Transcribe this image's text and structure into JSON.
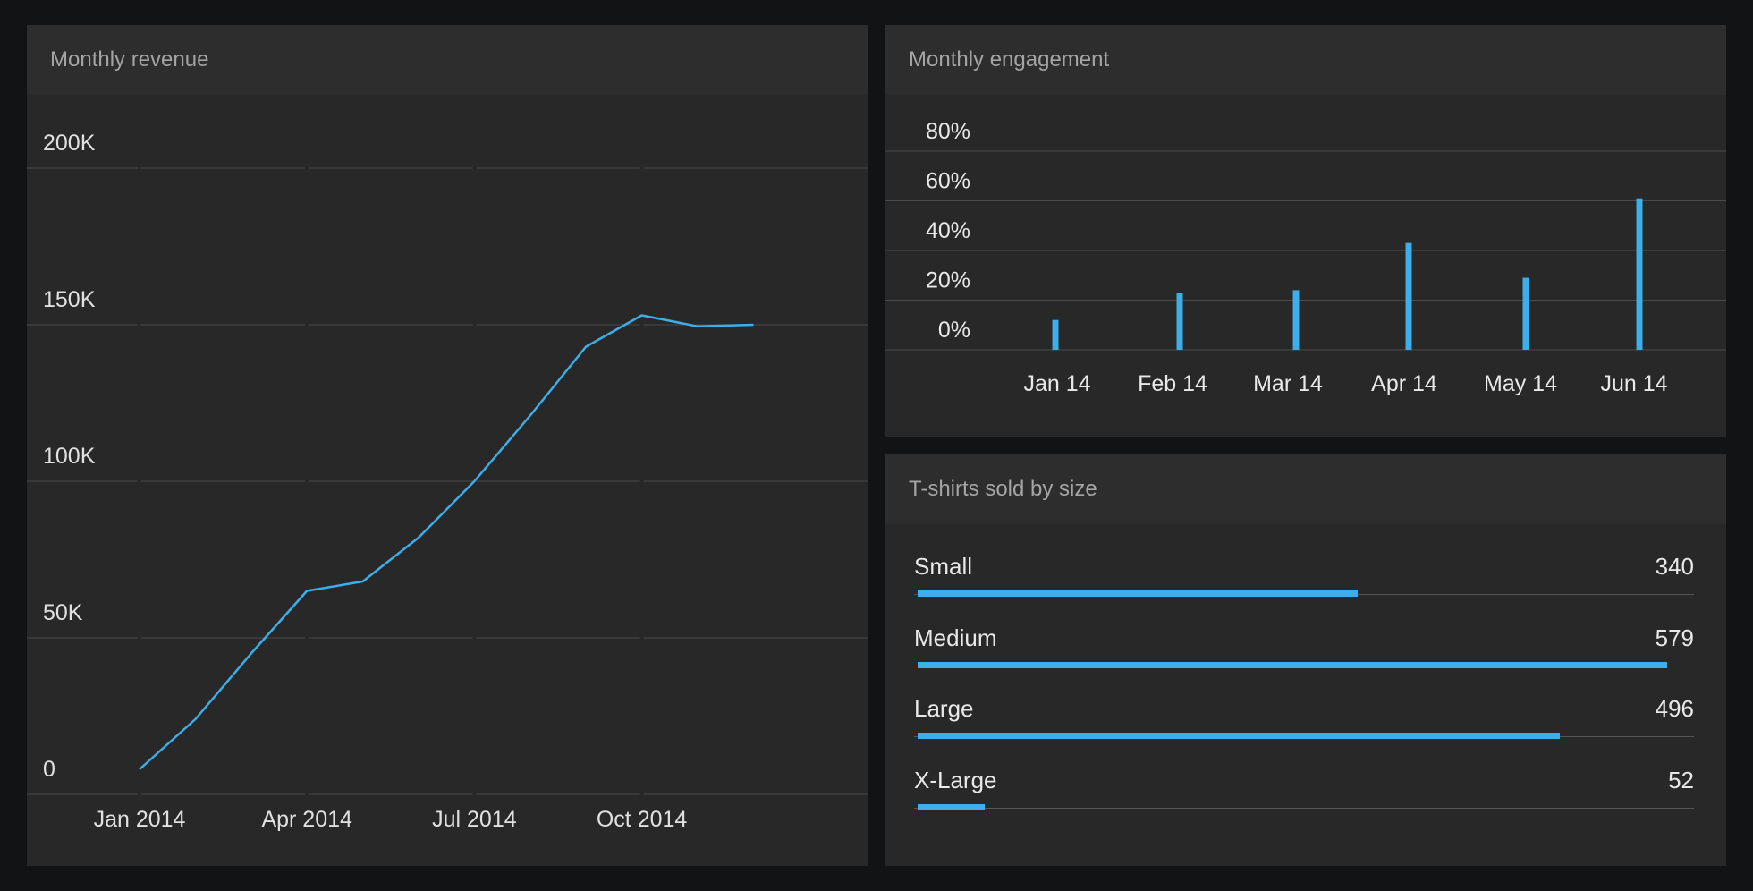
{
  "colors": {
    "accent": "#3daee9",
    "background": "#111315",
    "panel": "#282828",
    "header": "#2d2d2d"
  },
  "chart_data": [
    {
      "type": "line",
      "title": "Monthly revenue",
      "x": [
        "2014-01",
        "2014-02",
        "2014-03",
        "2014-04",
        "2014-05",
        "2014-06",
        "2014-07",
        "2014-08",
        "2014-09",
        "2014-10",
        "2014-11",
        "2014-12"
      ],
      "series": [
        {
          "values": [
            8000,
            24000,
            45000,
            65000,
            68000,
            82000,
            100000,
            121000,
            143000,
            153000,
            149500,
            150000
          ]
        }
      ],
      "ylim": [
        0,
        200000
      ],
      "y_ticks": [
        "0",
        "50K",
        "100K",
        "150K",
        "200K"
      ],
      "y_tick_values": [
        0,
        50000,
        100000,
        150000,
        200000
      ],
      "x_tick_labels": [
        "Jan 2014",
        "Apr 2014",
        "Jul 2014",
        "Oct 2014"
      ],
      "x_tick_months": [
        "2014-01",
        "2014-04",
        "2014-07",
        "2014-10"
      ],
      "grid": true
    },
    {
      "type": "bar",
      "title": "Monthly engagement",
      "categories": [
        "Jan 14",
        "Feb 14",
        "Mar 14",
        "Apr 14",
        "May 14",
        "Jun 14"
      ],
      "values": [
        12,
        23,
        24,
        43,
        29,
        61
      ],
      "y_ticks": [
        "0%",
        "20%",
        "40%",
        "60%",
        "80%"
      ],
      "grid": true
    },
    {
      "type": "bar",
      "orientation": "horizontal",
      "title": "T-shirts sold by size",
      "categories": [
        "Small",
        "Medium",
        "Large",
        "X-Large"
      ],
      "values": [
        "340",
        "579",
        "496",
        "52"
      ]
    }
  ]
}
